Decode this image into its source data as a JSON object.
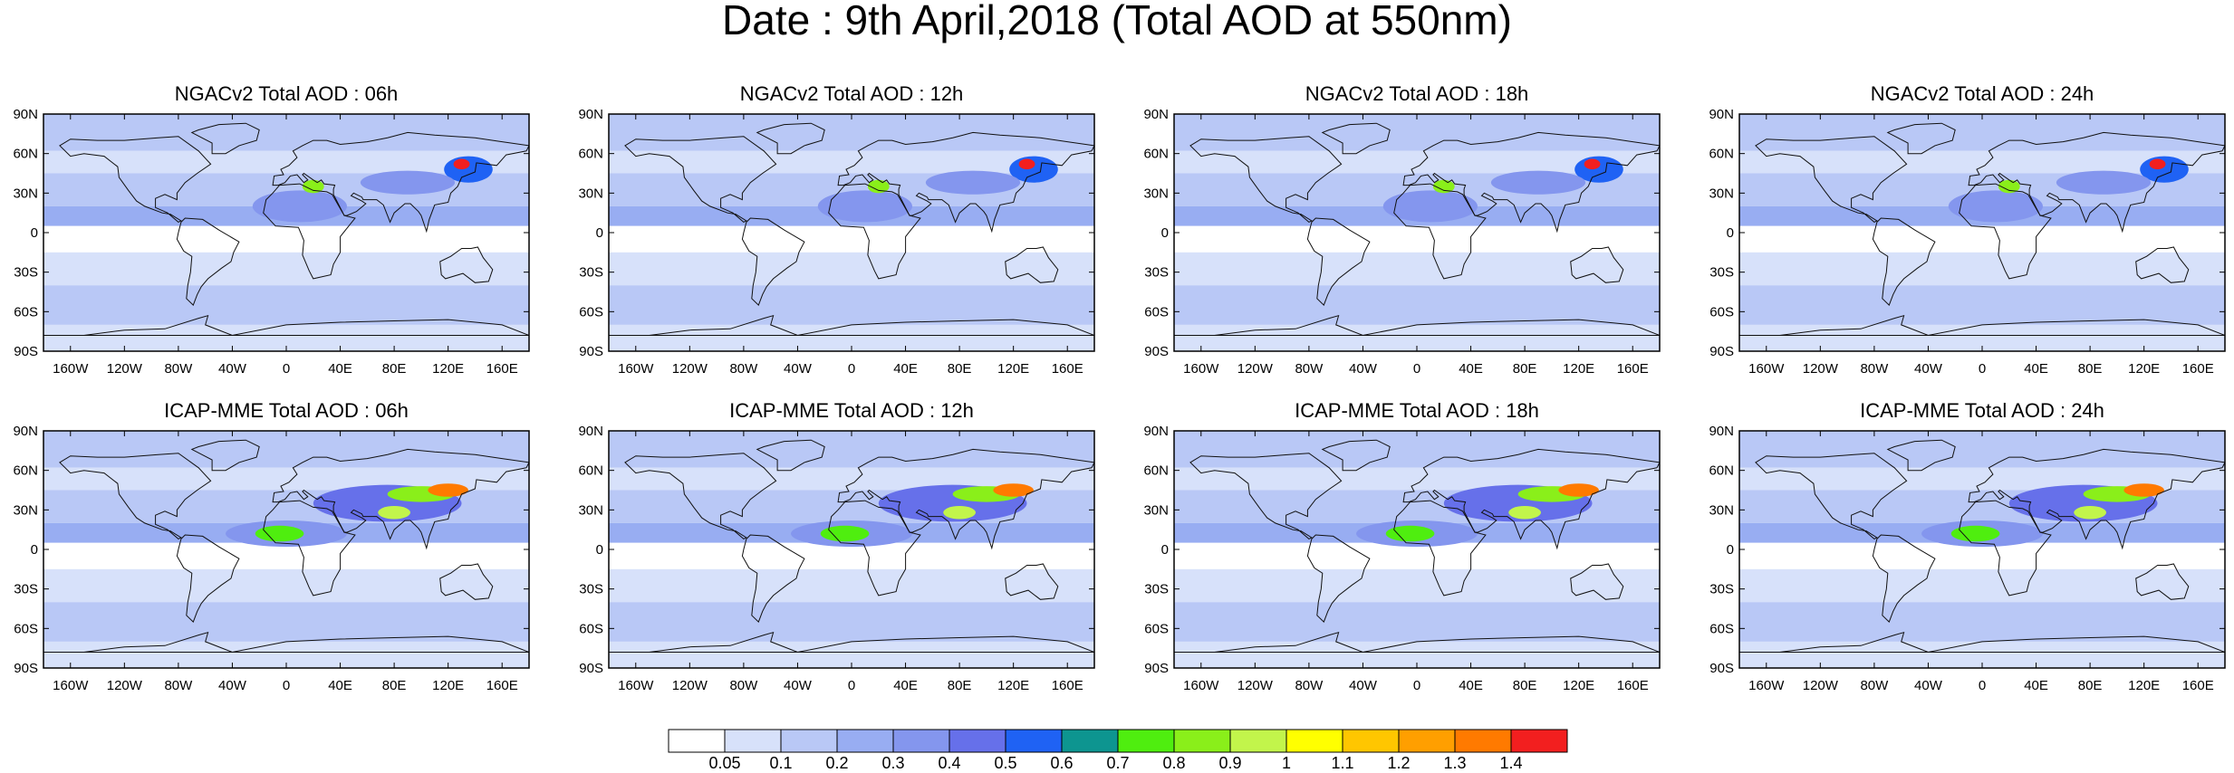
{
  "title": "Date : 9th April,2018 (Total AOD at 550nm)",
  "panels": [
    {
      "title": "NGACv2 Total AOD : 06h"
    },
    {
      "title": "NGACv2 Total AOD : 12h"
    },
    {
      "title": "NGACv2 Total AOD : 18h"
    },
    {
      "title": "NGACv2 Total AOD : 24h"
    },
    {
      "title": "ICAP-MME Total AOD : 06h"
    },
    {
      "title": "ICAP-MME Total AOD : 12h"
    },
    {
      "title": "ICAP-MME Total AOD : 18h"
    },
    {
      "title": "ICAP-MME Total AOD : 24h"
    }
  ],
  "lat_ticks": [
    "90N",
    "60N",
    "30N",
    "0",
    "30S",
    "60S",
    "90S"
  ],
  "lon_ticks": [
    "160W",
    "120W",
    "80W",
    "40W",
    "0",
    "40E",
    "80E",
    "120E",
    "160E"
  ],
  "colorbar": {
    "labels": [
      "0.05",
      "0.1",
      "0.2",
      "0.3",
      "0.4",
      "0.5",
      "0.6",
      "0.7",
      "0.8",
      "0.9",
      "1",
      "1.1",
      "1.2",
      "1.3",
      "1.4"
    ],
    "colors": [
      "#ffffff",
      "#d7e1fa",
      "#b9c8f6",
      "#98adf2",
      "#8496ee",
      "#6670ea",
      "#1f62f4",
      "#0d9590",
      "#4fee0f",
      "#8aef1a",
      "#c2f54b",
      "#ffff00",
      "#ffc600",
      "#ff9f00",
      "#ff7a00",
      "#f21f1f"
    ]
  }
}
